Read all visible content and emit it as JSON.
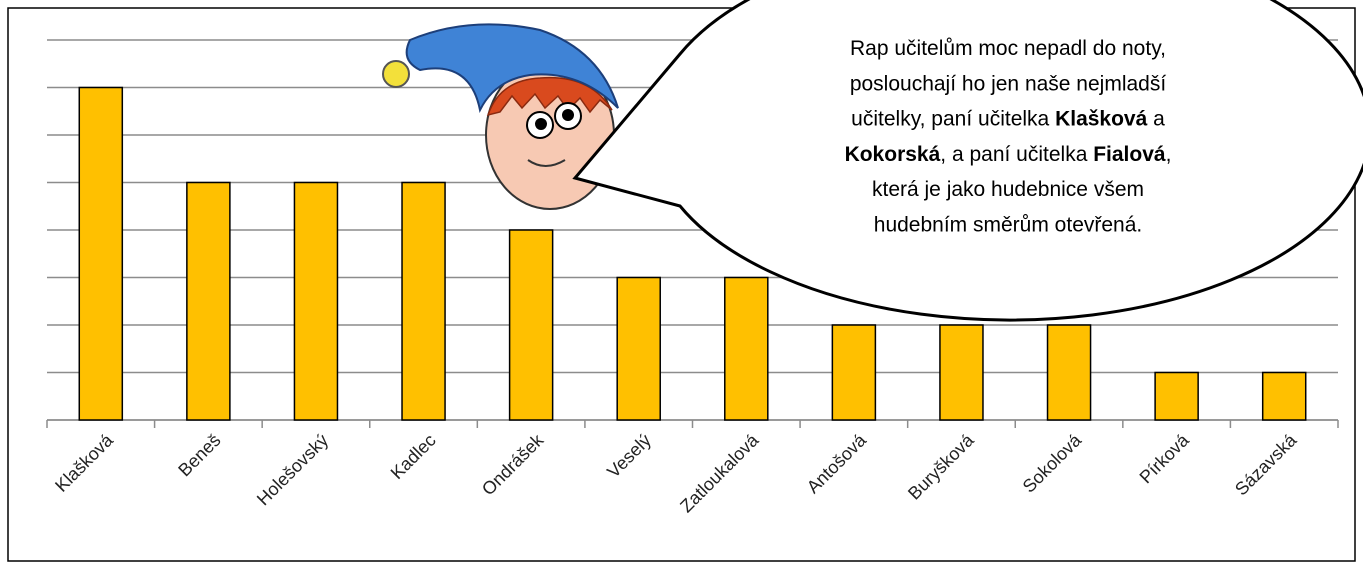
{
  "chart_data": {
    "type": "bar",
    "categories": [
      "Klašková",
      "Beneš",
      "Holešovský",
      "Kadlec",
      "Ondrášek",
      "Veselý",
      "Zatloukalová",
      "Antošová",
      "Buryšková",
      "Sokolová",
      "Pírková",
      "Sázavská"
    ],
    "values": [
      7,
      5,
      5,
      5,
      4,
      3,
      3,
      2,
      2,
      2,
      1,
      1
    ],
    "color": "#ffc000",
    "ylim": [
      0,
      8
    ],
    "yticks": [
      0,
      1,
      2,
      3,
      4,
      5,
      6,
      7,
      8
    ],
    "grid": true,
    "annotation": {
      "lines": [
        [
          {
            "text": "Rap učitelům moc nepadl do noty,"
          }
        ],
        [
          {
            "text": "poslouchají ho jen naše nejmladší"
          }
        ],
        [
          {
            "text": "učitelky, paní učitelka "
          },
          {
            "text": "Klašková",
            "bold": true
          },
          {
            "text": " a"
          }
        ],
        [
          {
            "text": "Kokorská",
            "bold": true
          },
          {
            "text": ", a paní učitelka "
          },
          {
            "text": "Fialová",
            "bold": true
          },
          {
            "text": ","
          }
        ],
        [
          {
            "text": "která je jako hudebnice všem"
          }
        ],
        [
          {
            "text": "hudebním směrům otevřená."
          }
        ]
      ]
    }
  }
}
